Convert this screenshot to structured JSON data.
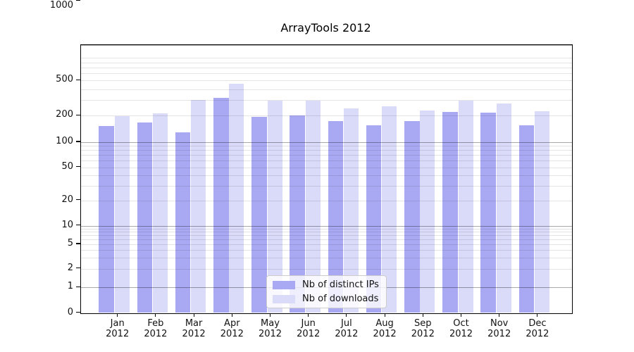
{
  "chart_data": {
    "type": "bar",
    "title": "ArrayTools 2012",
    "categories": [
      "Jan",
      "Feb",
      "Mar",
      "Apr",
      "May",
      "Jun",
      "Jul",
      "Aug",
      "Sep",
      "Oct",
      "Nov",
      "Dec"
    ],
    "year": "2012",
    "series": [
      {
        "name": "Nb of distinct IPs",
        "color": "#a9a9f3",
        "values": [
          153,
          166,
          130,
          316,
          194,
          202,
          175,
          155,
          174,
          221,
          216,
          156
        ]
      },
      {
        "name": "Nb of downloads",
        "color": "#dadaf9",
        "values": [
          199,
          211,
          302,
          456,
          294,
          296,
          240,
          255,
          229,
          294,
          274,
          223
        ]
      }
    ],
    "yticks": [
      0,
      1,
      2,
      5,
      10,
      20,
      50,
      100,
      200,
      500,
      1000
    ],
    "xlabel": "",
    "ylabel": "",
    "yscale": "log decades above 1, linear segment 0-1",
    "ylim": [
      0,
      1270
    ],
    "grid": true,
    "legend_position": "lower center"
  },
  "colors": {
    "background": "#ffffff",
    "major_grid": "#aaaaaa",
    "minor_grid": "#e4e4e4",
    "axis": "#000000",
    "text": "#111111",
    "legend_border": "#cccccc"
  }
}
